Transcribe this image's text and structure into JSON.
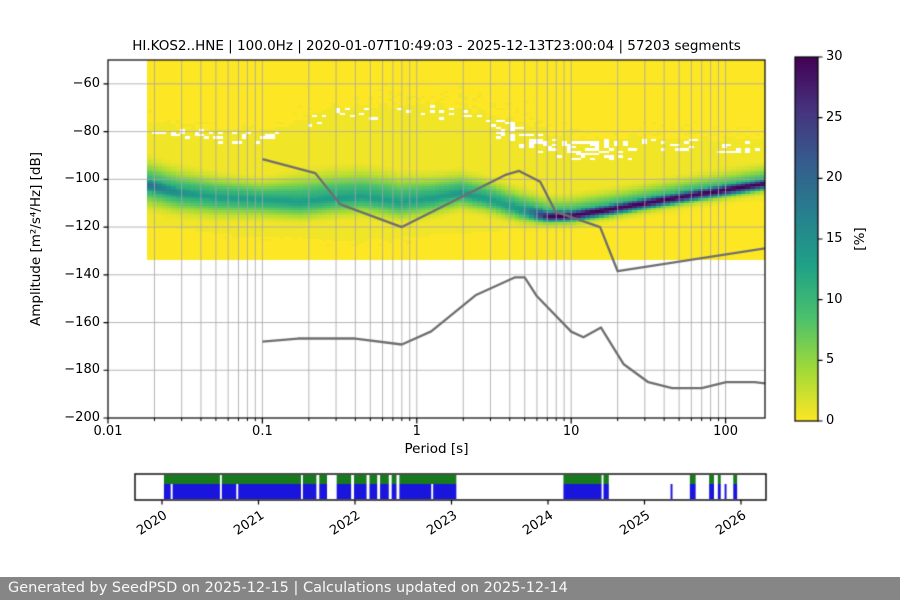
{
  "title": "HI.KOS2..HNE | 100.0Hz | 2020-01-07T10:49:03 - 2025-12-13T23:00:04 | 57203 segments",
  "footer": "Generated by SeedPSD on 2025-12-15 | Calculations updated on 2025-12-14",
  "axes": {
    "xlabel": "Period [s]",
    "ylabel": "Amplitude [m²/s⁴/Hz] [dB]",
    "x_tick_labels": [
      "0.01",
      "0.1",
      "1",
      "10",
      "100"
    ],
    "y_tick_labels": [
      "−60",
      "−80",
      "−100",
      "−120",
      "−140",
      "−160",
      "−180",
      "−200"
    ]
  },
  "colorbar": {
    "label": "[%]",
    "tick_labels": [
      "0",
      "5",
      "10",
      "15",
      "20",
      "25",
      "30"
    ],
    "min": 0,
    "max": 30,
    "viridis_stops": [
      "#440154",
      "#46327e",
      "#365c8d",
      "#277f8e",
      "#1fa187",
      "#4ac16d",
      "#a0da39",
      "#fde725"
    ]
  },
  "timeline": {
    "year_labels": [
      "2020",
      "2021",
      "2022",
      "2023",
      "2024",
      "2025",
      "2026"
    ]
  },
  "colors": {
    "grid": "#a6a6a6",
    "noise_model_line": "#6f6f6f",
    "axis": "#000000",
    "footer_bg": "#868686",
    "footer_text": "#f8f8f8",
    "timeline_green": "#177a1c",
    "timeline_blue": "#1a15dd"
  },
  "chart_data": {
    "type": "heatmap",
    "title": "HI.KOS2..HNE | 100.0Hz | 2020-01-07T10:49:03 - 2025-12-13T23:00:04 | 57203 segments",
    "xlabel": "Period [s]",
    "ylabel": "Amplitude [m2/s4/Hz] [dB]",
    "x_scale": "log",
    "x_range_s": [
      0.01,
      180
    ],
    "y_range_db": [
      -200,
      -50
    ],
    "x_ticks": [
      0.01,
      0.1,
      1,
      10,
      100
    ],
    "y_ticks": [
      -60,
      -80,
      -100,
      -120,
      -140,
      -160,
      -180,
      -200
    ],
    "grid": true,
    "colorbar": {
      "label": "[%]",
      "range": [
        0,
        30
      ],
      "colormap": "viridis_r",
      "ticks": [
        0,
        5,
        10,
        15,
        20,
        25,
        30
      ]
    },
    "data_period_range_s": [
      0.018,
      180
    ],
    "psd_band": {
      "comment": "Probability distribution ridge of the PPSD; anchors as [log10(period s), value]",
      "center_db": [
        [
          -1.745,
          -102.3
        ],
        [
          -1.55,
          -105.5
        ],
        [
          -1.3,
          -107.5
        ],
        [
          -1.0,
          -108.5
        ],
        [
          -0.75,
          -109.5
        ],
        [
          -0.55,
          -108
        ],
        [
          -0.35,
          -107.3
        ],
        [
          -0.11,
          -109.5
        ],
        [
          0.1,
          -108
        ],
        [
          0.28,
          -105.8
        ],
        [
          0.45,
          -108
        ],
        [
          0.67,
          -112.6
        ],
        [
          0.85,
          -115.5
        ],
        [
          1.0,
          -115.2
        ],
        [
          1.2,
          -113.2
        ],
        [
          1.5,
          -109.8
        ],
        [
          1.8,
          -106.5
        ],
        [
          2.0,
          -104.5
        ],
        [
          2.26,
          -101.8
        ]
      ],
      "top_db": [
        [
          -1.745,
          -76
        ],
        [
          -1.55,
          -78.5
        ],
        [
          -1.3,
          -80
        ],
        [
          -1.0,
          -80.5
        ],
        [
          -0.8,
          -77
        ],
        [
          -0.6,
          -71
        ],
        [
          -0.45,
          -69.5
        ],
        [
          -0.2,
          -70
        ],
        [
          0.0,
          -68.5
        ],
        [
          0.3,
          -70.5
        ],
        [
          0.6,
          -76
        ],
        [
          0.8,
          -81
        ],
        [
          1.1,
          -83.5
        ],
        [
          1.6,
          -83
        ],
        [
          2.26,
          -84.5
        ]
      ],
      "bottom_db": [
        [
          -1.745,
          -119
        ],
        [
          -1.5,
          -121
        ],
        [
          -1.15,
          -124
        ],
        [
          -0.75,
          -124.5
        ],
        [
          -0.45,
          -126
        ],
        [
          -0.2,
          -125
        ],
        [
          0.1,
          -123.5
        ],
        [
          0.5,
          -122
        ],
        [
          0.72,
          -119
        ],
        [
          0.9,
          -117
        ],
        [
          1.1,
          -115.5
        ],
        [
          1.4,
          -112.5
        ],
        [
          1.8,
          -110
        ],
        [
          2.26,
          -108.5
        ]
      ],
      "peak_percent": [
        [
          -1.745,
          19
        ],
        [
          -1.6,
          16
        ],
        [
          -1.4,
          13.5
        ],
        [
          -1.0,
          13
        ],
        [
          -0.5,
          13.5
        ],
        [
          0.0,
          13
        ],
        [
          0.3,
          14
        ],
        [
          0.55,
          13
        ],
        [
          0.67,
          14
        ],
        [
          0.72,
          16
        ],
        [
          0.8,
          24
        ],
        [
          0.85,
          29
        ],
        [
          0.9,
          30
        ],
        [
          2.26,
          30
        ]
      ],
      "sigma_above_db": [
        [
          -1.745,
          5.5
        ],
        [
          -1.0,
          4.2
        ],
        [
          -0.75,
          6
        ],
        [
          -0.2,
          6
        ],
        [
          0.3,
          4.5
        ],
        [
          0.85,
          4.2
        ],
        [
          2.26,
          4.0
        ]
      ],
      "sigma_below_db": [
        [
          -1.745,
          5
        ],
        [
          -1.0,
          4
        ],
        [
          0.0,
          4
        ],
        [
          0.7,
          3
        ],
        [
          0.85,
          2.2
        ],
        [
          2.26,
          2.2
        ]
      ],
      "core_sigma_db": [
        [
          -1.745,
          2.6
        ],
        [
          0.72,
          2.6
        ],
        [
          0.85,
          1.6
        ],
        [
          2.26,
          1.6
        ]
      ],
      "background_percent": 0.55
    },
    "features": {
      "top_strip": {
        "db": -50.5,
        "log10_from": -0.42,
        "log10_to": 0.862
      },
      "diagonals": [
        {
          "from": [
            -0.585,
            -66
          ],
          "to": [
            -0.37,
            -50.5
          ],
          "density": 0.85
        },
        {
          "from": [
            0.857,
            -52
          ],
          "to": [
            1.48,
            -77
          ],
          "density": 0.85
        },
        {
          "from": [
            0.93,
            -62
          ],
          "to": [
            1.42,
            -80
          ],
          "density": 0.5
        }
      ],
      "blob": {
        "log10_from": 2.08,
        "log10_to": 2.26,
        "db_from": -78,
        "db_to": -74.5,
        "density": 0.5
      }
    },
    "noise_models": {
      "nhnm": {
        "period_s": [
          0.1,
          0.22,
          0.32,
          0.8,
          3.8,
          4.6,
          6.3,
          7.9,
          15.4,
          20.0,
          354.8
        ],
        "db": [
          -91.5,
          -97.4,
          -110.5,
          -120.0,
          -98.0,
          -96.5,
          -101.0,
          -113.5,
          -120.0,
          -138.5,
          -126.0
        ]
      },
      "nlnm": {
        "period_s": [
          0.1,
          0.17,
          0.4,
          0.8,
          1.24,
          2.4,
          4.3,
          5.0,
          6.0,
          10.0,
          12.0,
          15.6,
          21.9,
          31.6,
          45.0,
          70.0,
          101.0,
          154.0,
          328.0
        ],
        "db": [
          -168.0,
          -166.7,
          -166.7,
          -169.2,
          -163.7,
          -148.6,
          -141.1,
          -141.1,
          -149.0,
          -163.8,
          -166.2,
          -162.1,
          -177.5,
          -185.0,
          -187.5,
          -187.5,
          -185.0,
          -185.0,
          -187.5
        ]
      }
    },
    "availability_timeline": {
      "x_range_years": [
        2019.72,
        2026.26
      ],
      "year_ticks": [
        2020,
        2021,
        2022,
        2023,
        2024,
        2025,
        2026
      ],
      "green_segments": [
        [
          2020.02,
          2020.6
        ],
        [
          2020.62,
          2021.44
        ],
        [
          2021.46,
          2021.6
        ],
        [
          2021.63,
          2021.71
        ],
        [
          2021.81,
          2021.96
        ],
        [
          2021.99,
          2022.12
        ],
        [
          2022.15,
          2022.23
        ],
        [
          2022.26,
          2022.35
        ],
        [
          2022.38,
          2022.43
        ],
        [
          2022.46,
          2023.05
        ],
        [
          2024.16,
          2024.555
        ],
        [
          2024.575,
          2024.63
        ],
        [
          2025.47,
          2025.53
        ],
        [
          2025.67,
          2025.72
        ],
        [
          2025.76,
          2025.79
        ],
        [
          2025.92,
          2025.96
        ]
      ],
      "blue_segments": [
        [
          2020.02,
          2020.09
        ],
        [
          2020.11,
          2020.6
        ],
        [
          2020.62,
          2020.77
        ],
        [
          2020.79,
          2021.44
        ],
        [
          2021.46,
          2021.6
        ],
        [
          2021.63,
          2021.71
        ],
        [
          2021.81,
          2021.96
        ],
        [
          2021.99,
          2022.12
        ],
        [
          2022.15,
          2022.23
        ],
        [
          2022.26,
          2022.35
        ],
        [
          2022.38,
          2022.43
        ],
        [
          2022.46,
          2022.79
        ],
        [
          2022.81,
          2023.05
        ],
        [
          2024.16,
          2024.555
        ],
        [
          2024.575,
          2024.63
        ],
        [
          2025.27,
          2025.29
        ],
        [
          2025.47,
          2025.53
        ],
        [
          2025.67,
          2025.72
        ],
        [
          2025.76,
          2025.79
        ],
        [
          2025.83,
          2025.85
        ],
        [
          2025.92,
          2025.96
        ]
      ]
    }
  }
}
